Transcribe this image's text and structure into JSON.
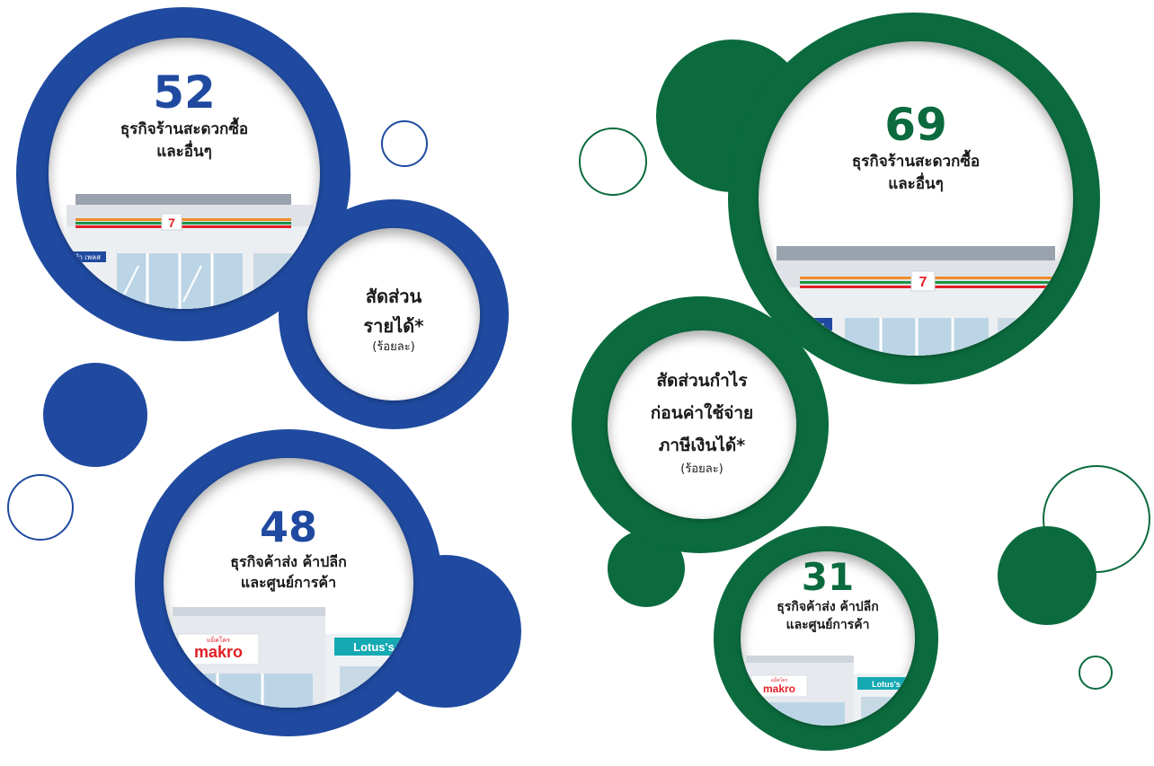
{
  "colors": {
    "blue": "#1f4aa0",
    "green": "#0b6b3e",
    "white": "#ffffff"
  },
  "left": {
    "convenience": {
      "value": "52",
      "line1": "ธุรกิจร้านสะดวกซื้อ",
      "line2": "และอื่นๆ",
      "store_icon": "convenience-store-icon"
    },
    "share": {
      "line1": "สัดส่วน",
      "line2": "รายได้*",
      "unit": "(ร้อยละ)"
    },
    "wholesale": {
      "value": "48",
      "line1": "ธุรกิจค้าส่ง ค้าปลีก",
      "line2": "และศูนย์การค้า",
      "store_icon": "wholesale-mall-icon"
    }
  },
  "right": {
    "convenience": {
      "value": "69",
      "line1": "ธุรกิจร้านสะดวกซื้อ",
      "line2": "และอื่นๆ",
      "store_icon": "convenience-store-icon"
    },
    "share": {
      "line1": "สัดส่วนกำไร",
      "line2": "ก่อนค่าใช้จ่าย",
      "line3": "ภาษีเงินได้*",
      "unit": "(ร้อยละ)"
    },
    "wholesale": {
      "value": "31",
      "line1": "ธุรกิจค้าส่ง ค้าปลีก",
      "line2": "และศูนย์การค้า",
      "store_icon": "wholesale-mall-icon"
    }
  },
  "brands": {
    "seven": "7 ELEVEN",
    "sign": "ชำ เพลส",
    "makro_small": "แม็คโคร",
    "makro": "makro",
    "lotus": "Lotus's"
  }
}
